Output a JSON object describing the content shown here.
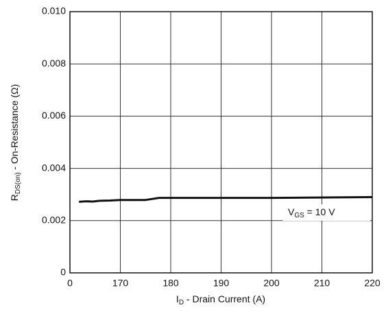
{
  "chart_data": {
    "type": "line",
    "xlabel": {
      "main": "I",
      "sub": "D",
      "rest": " - Drain Current (A)"
    },
    "ylabel": {
      "main": "R",
      "sub": "DS(on)",
      "rest": " - On-Resistance (Ω)"
    },
    "annotation": {
      "main": "V",
      "sub": "GS",
      "rest": " = 10 V"
    },
    "x": [
      161.8,
      163.1,
      164.5,
      165.9,
      167.9,
      169.9,
      175.0,
      177.7,
      186.9,
      200.5,
      220
    ],
    "series": [
      {
        "color": "#111111",
        "values": [
          0.00272,
          0.00274,
          0.00273,
          0.00276,
          0.00277,
          0.00279,
          0.00279,
          0.00287,
          0.00287,
          0.00287,
          0.0029
        ]
      }
    ],
    "xlim": [
      160,
      220
    ],
    "xticks": [
      {
        "value": 160,
        "label": "0"
      },
      170,
      180,
      190,
      200,
      210,
      220
    ],
    "ylim": [
      0,
      0.01
    ],
    "yticks": [
      0,
      0.002,
      0.004,
      0.006,
      0.008,
      {
        "value": 0.01,
        "label": "0.010"
      }
    ],
    "grid": true
  }
}
